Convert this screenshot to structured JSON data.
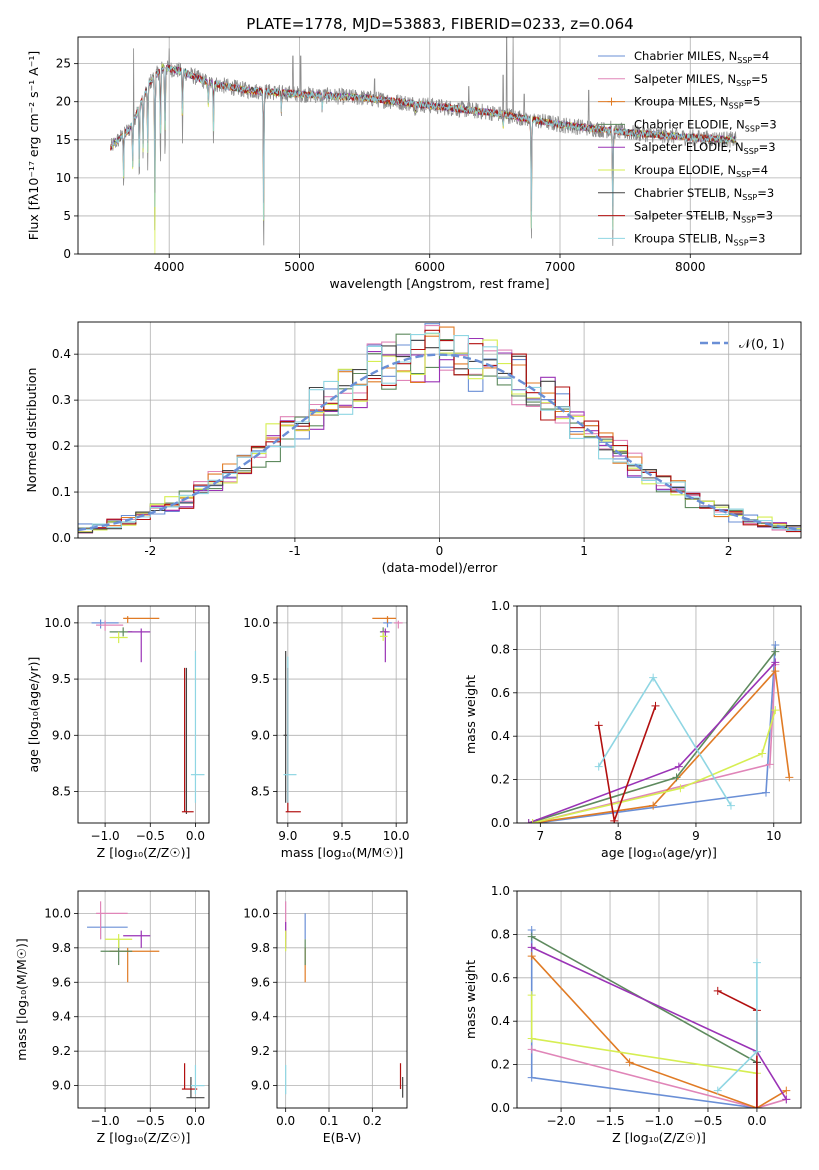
{
  "title": "PLATE=1778, MJD=53883, FIBERID=0233, z=0.064",
  "models": [
    {
      "name": "Chabrier MILES",
      "nssp": "4",
      "color": "#6a8fd6"
    },
    {
      "name": "Salpeter MILES",
      "nssp": "5",
      "color": "#e085b8"
    },
    {
      "name": "Kroupa MILES",
      "nssp": "5",
      "color": "#e07b25"
    },
    {
      "name": "Chabrier ELODIE",
      "nssp": "3",
      "color": "#5e8a5e"
    },
    {
      "name": "Salpeter ELODIE",
      "nssp": "3",
      "color": "#9a33b6"
    },
    {
      "name": "Kroupa ELODIE",
      "nssp": "4",
      "color": "#d6ee52"
    },
    {
      "name": "Chabrier STELIB",
      "nssp": "3",
      "color": "#444444"
    },
    {
      "name": "Salpeter STELIB",
      "nssp": "3",
      "color": "#b21010"
    },
    {
      "name": "Kroupa STELIB",
      "nssp": "3",
      "color": "#8fd6e3"
    }
  ],
  "chart_data": [
    {
      "id": "spectrum",
      "type": "line",
      "xlabel": "wavelength [Angstrom, rest frame]",
      "ylabel": "Flux [fλ10⁻¹⁷ erg cm⁻² s⁻¹ A⁻¹]",
      "xlim": [
        3300,
        8850
      ],
      "ylim": [
        0,
        28.5
      ],
      "xticks": [
        4000,
        5000,
        6000,
        7000,
        8000
      ],
      "yticks": [
        0,
        5,
        10,
        15,
        20,
        25
      ],
      "data_color": "#8c8c8c",
      "continuum": [
        [
          3550,
          14.0
        ],
        [
          3700,
          16.5
        ],
        [
          3850,
          22.5
        ],
        [
          3950,
          24.5
        ],
        [
          4100,
          24.0
        ],
        [
          4300,
          22.5
        ],
        [
          4600,
          21.5
        ],
        [
          5000,
          21.0
        ],
        [
          5500,
          20.5
        ],
        [
          6000,
          19.5
        ],
        [
          6500,
          18.5
        ],
        [
          7000,
          17.0
        ],
        [
          7500,
          16.0
        ],
        [
          8000,
          15.3
        ],
        [
          8350,
          15.0
        ]
      ],
      "absorption": [
        [
          3650,
          9.0
        ],
        [
          3720,
          10.0
        ],
        [
          3770,
          9.5
        ],
        [
          3800,
          12.0
        ],
        [
          3835,
          11.0
        ],
        [
          3890,
          2.0
        ],
        [
          3933,
          11.0
        ],
        [
          3968,
          12.0
        ],
        [
          4102,
          15.0
        ],
        [
          4300,
          19.0
        ],
        [
          4340,
          15.0
        ],
        [
          4725,
          0.0
        ],
        [
          4861,
          18.0
        ],
        [
          5175,
          19.0
        ],
        [
          5890,
          18.5
        ],
        [
          6563,
          16.0
        ],
        [
          6780,
          0.0
        ],
        [
          7405,
          0.0
        ]
      ],
      "emission": [
        [
          3727,
          27.0
        ],
        [
          4000,
          27.0
        ],
        [
          4950,
          26.0
        ],
        [
          5010,
          26.0
        ],
        [
          5577,
          23.0
        ],
        [
          6300,
          22.0
        ],
        [
          6563,
          23.5
        ],
        [
          6590,
          28.5
        ],
        [
          6640,
          28.5
        ],
        [
          6725,
          21.0
        ],
        [
          7220,
          21.5
        ],
        [
          7390,
          17.5
        ]
      ]
    },
    {
      "id": "residuals",
      "type": "histogram",
      "xlabel": "(data-model)/error",
      "ylabel": "Normed distribution",
      "xlim": [
        -2.5,
        2.5
      ],
      "ylim": [
        0,
        0.47
      ],
      "xticks": [
        -2,
        -1,
        0,
        1,
        2
      ],
      "yticks": [
        0.0,
        0.1,
        0.2,
        0.3,
        0.4
      ],
      "bin_width": 0.1,
      "legend": "𝒩(0, 1)",
      "legend_color": "#6a8fd6"
    },
    {
      "id": "age-vs-Z",
      "type": "errorbar",
      "xlabel": "Z [log₁₀(Z/Z☉)]",
      "ylabel": "age  [log₁₀(age/yr)]",
      "xlim": [
        -1.3,
        0.15
      ],
      "ylim": [
        8.22,
        10.15
      ],
      "xticks": [
        -1.0,
        -0.5,
        0.0
      ],
      "yticks": [
        8.5,
        9.0,
        9.5,
        10.0
      ],
      "points": [
        {
          "m": 0,
          "x": -1.05,
          "y": 10.0,
          "xe": [
            -1.15,
            -0.85
          ],
          "ye": [
            9.95,
            10.03
          ]
        },
        {
          "m": 1,
          "x": -1.0,
          "y": 9.98,
          "xe": [
            -1.1,
            -0.8
          ],
          "ye": [
            9.93,
            10.02
          ]
        },
        {
          "m": 2,
          "x": -0.75,
          "y": 10.04,
          "xe": [
            -0.8,
            -0.4
          ],
          "ye": [
            10.0,
            10.06
          ]
        },
        {
          "m": 3,
          "x": -0.8,
          "y": 9.92,
          "xe": [
            -0.95,
            -0.7
          ],
          "ye": [
            9.88,
            9.96
          ]
        },
        {
          "m": 4,
          "x": -0.6,
          "y": 9.92,
          "xe": [
            -0.75,
            -0.5
          ],
          "ye": [
            9.65,
            9.95
          ]
        },
        {
          "m": 5,
          "x": -0.85,
          "y": 9.87,
          "xe": [
            -0.95,
            -0.75
          ],
          "ye": [
            9.82,
            9.92
          ]
        },
        {
          "m": 6,
          "x": -0.1,
          "y": 9.6,
          "xe": [
            -0.1,
            -0.1
          ],
          "ye": [
            8.3,
            9.6
          ]
        },
        {
          "m": 7,
          "x": -0.12,
          "y": 8.32,
          "xe": [
            -0.15,
            -0.02
          ],
          "ye": [
            8.32,
            9.6
          ]
        },
        {
          "m": 8,
          "x": 0.0,
          "y": 8.65,
          "xe": [
            -0.05,
            0.1
          ],
          "ye": [
            8.4,
            9.75
          ]
        }
      ]
    },
    {
      "id": "age-vs-mass",
      "type": "errorbar",
      "xlabel": "mass [log₁₀(M/M☉)]",
      "ylabel": "",
      "xlim": [
        8.9,
        10.1
      ],
      "ylim": [
        8.22,
        10.15
      ],
      "xticks": [
        9.0,
        9.5,
        10.0
      ],
      "yticks": [
        8.5,
        9.0,
        9.5,
        10.0
      ],
      "points": [
        {
          "m": 0,
          "x": 9.92,
          "y": 10.0,
          "xe": [
            9.88,
            9.96
          ],
          "ye": [
            9.96,
            10.03
          ]
        },
        {
          "m": 1,
          "x": 10.02,
          "y": 10.0,
          "xe": [
            9.98,
            10.06
          ],
          "ye": [
            9.95,
            10.02
          ]
        },
        {
          "m": 2,
          "x": 9.92,
          "y": 10.04,
          "xe": [
            9.78,
            10.0
          ],
          "ye": [
            10.0,
            10.06
          ]
        },
        {
          "m": 3,
          "x": 9.88,
          "y": 9.92,
          "xe": [
            9.85,
            9.92
          ],
          "ye": [
            9.88,
            9.96
          ]
        },
        {
          "m": 4,
          "x": 9.9,
          "y": 9.92,
          "xe": [
            9.86,
            9.94
          ],
          "ye": [
            9.65,
            9.95
          ]
        },
        {
          "m": 5,
          "x": 9.88,
          "y": 9.88,
          "xe": [
            9.85,
            9.92
          ],
          "ye": [
            9.84,
            9.92
          ]
        },
        {
          "m": 6,
          "x": 8.98,
          "y": 9.0,
          "xe": [
            8.96,
            9.0
          ],
          "ye": [
            8.4,
            9.75
          ]
        },
        {
          "m": 7,
          "x": 9.0,
          "y": 8.32,
          "xe": [
            8.98,
            9.12
          ],
          "ye": [
            8.32,
            9.6
          ]
        },
        {
          "m": 8,
          "x": 9.0,
          "y": 8.65,
          "xe": [
            8.96,
            9.08
          ],
          "ye": [
            8.4,
            9.7
          ]
        }
      ]
    },
    {
      "id": "massweight-vs-age",
      "type": "line",
      "xlabel": "age  [log₁₀(age/yr)]",
      "ylabel": "mass weight",
      "xlim": [
        6.7,
        10.35
      ],
      "ylim": [
        0,
        1.0
      ],
      "xticks": [
        7,
        8,
        9,
        10
      ],
      "yticks": [
        0.0,
        0.2,
        0.4,
        0.6,
        0.8,
        1.0
      ],
      "series": [
        {
          "m": 0,
          "x": [
            6.95,
            9.9,
            10.02
          ],
          "y": [
            0.0,
            0.14,
            0.82
          ]
        },
        {
          "m": 1,
          "x": [
            6.9,
            9.95,
            10.02
          ],
          "y": [
            0.0,
            0.27,
            0.73
          ]
        },
        {
          "m": 2,
          "x": [
            6.9,
            8.45,
            10.02,
            10.2
          ],
          "y": [
            0.0,
            0.08,
            0.7,
            0.21
          ]
        },
        {
          "m": 3,
          "x": [
            6.85,
            8.75,
            10.02
          ],
          "y": [
            0.0,
            0.21,
            0.79
          ]
        },
        {
          "m": 4,
          "x": [
            6.85,
            8.78,
            10.02
          ],
          "y": [
            0.0,
            0.26,
            0.74
          ]
        },
        {
          "m": 5,
          "x": [
            6.9,
            8.8,
            9.85,
            10.02
          ],
          "y": [
            0.0,
            0.16,
            0.32,
            0.52
          ]
        },
        {
          "m": 6,
          "x": [
            7.95,
            7.95
          ],
          "y": [
            0.0,
            0.0
          ]
        },
        {
          "m": 7,
          "x": [
            7.75,
            7.95,
            8.48
          ],
          "y": [
            0.45,
            0.01,
            0.54
          ]
        },
        {
          "m": 8,
          "x": [
            7.75,
            8.45,
            9.45
          ],
          "y": [
            0.26,
            0.67,
            0.08
          ]
        }
      ]
    },
    {
      "id": "mass-vs-Z",
      "type": "errorbar",
      "xlabel": "Z [log₁₀(Z/Z☉)]",
      "ylabel": "mass [log₁₀(M/M☉)]",
      "xlim": [
        -1.3,
        0.15
      ],
      "ylim": [
        8.87,
        10.13
      ],
      "xticks": [
        -1.0,
        -0.5,
        0.0
      ],
      "yticks": [
        9.0,
        9.2,
        9.4,
        9.6,
        9.8,
        10.0
      ],
      "points": [
        {
          "m": 0,
          "x": -1.05,
          "y": 9.92,
          "xe": [
            -1.2,
            -0.75
          ],
          "ye": [
            9.85,
            10.0
          ]
        },
        {
          "m": 1,
          "x": -1.05,
          "y": 10.0,
          "xe": [
            -1.1,
            -0.75
          ],
          "ye": [
            9.85,
            10.07
          ]
        },
        {
          "m": 2,
          "x": -0.75,
          "y": 9.78,
          "xe": [
            -0.95,
            -0.4
          ],
          "ye": [
            9.6,
            9.8
          ]
        },
        {
          "m": 3,
          "x": -0.85,
          "y": 9.78,
          "xe": [
            -1.05,
            -0.7
          ],
          "ye": [
            9.7,
            9.85
          ]
        },
        {
          "m": 4,
          "x": -0.6,
          "y": 9.87,
          "xe": [
            -0.8,
            -0.5
          ],
          "ye": [
            9.8,
            9.9
          ]
        },
        {
          "m": 5,
          "x": -0.85,
          "y": 9.85,
          "xe": [
            -1.0,
            -0.7
          ],
          "ye": [
            9.8,
            9.88
          ]
        },
        {
          "m": 6,
          "x": -0.05,
          "y": 8.93,
          "xe": [
            -0.1,
            0.1
          ],
          "ye": [
            8.93,
            9.05
          ]
        },
        {
          "m": 7,
          "x": -0.12,
          "y": 8.98,
          "xe": [
            -0.15,
            0.02
          ],
          "ye": [
            8.98,
            9.13
          ]
        },
        {
          "m": 8,
          "x": 0.0,
          "y": 9.0,
          "xe": [
            -0.05,
            0.1
          ],
          "ye": [
            8.95,
            9.12
          ]
        }
      ]
    },
    {
      "id": "mass-vs-EBV",
      "type": "errorbar",
      "xlabel": "E(B-V)",
      "ylabel": "",
      "xlim": [
        -0.02,
        0.28
      ],
      "ylim": [
        8.87,
        10.13
      ],
      "xticks": [
        0.0,
        0.1,
        0.2
      ],
      "yticks": [
        9.0,
        9.2,
        9.4,
        9.6,
        9.8,
        10.0
      ],
      "points": [
        {
          "m": 0,
          "x": 0.045,
          "y": 9.92,
          "xe": [
            0.045,
            0.045
          ],
          "ye": [
            9.85,
            10.0
          ]
        },
        {
          "m": 1,
          "x": 0.0,
          "y": 10.0,
          "xe": [
            0.0,
            0.0
          ],
          "ye": [
            9.85,
            10.07
          ]
        },
        {
          "m": 2,
          "x": 0.045,
          "y": 9.78,
          "xe": [
            0.045,
            0.045
          ],
          "ye": [
            9.6,
            9.8
          ]
        },
        {
          "m": 3,
          "x": 0.045,
          "y": 9.8,
          "xe": [
            0.045,
            0.045
          ],
          "ye": [
            9.7,
            9.85
          ]
        },
        {
          "m": 4,
          "x": 0.0,
          "y": 9.87,
          "xe": [
            0.0,
            0.0
          ],
          "ye": [
            9.8,
            9.95
          ]
        },
        {
          "m": 5,
          "x": 0.0,
          "y": 9.85,
          "xe": [
            0.0,
            0.0
          ],
          "ye": [
            9.78,
            9.9
          ]
        },
        {
          "m": 6,
          "x": 0.27,
          "y": 8.93,
          "xe": [
            0.27,
            0.27
          ],
          "ye": [
            8.93,
            9.05
          ]
        },
        {
          "m": 7,
          "x": 0.265,
          "y": 8.98,
          "xe": [
            0.265,
            0.265
          ],
          "ye": [
            8.98,
            9.13
          ]
        },
        {
          "m": 8,
          "x": 0.0,
          "y": 9.0,
          "xe": [
            0.0,
            0.0
          ],
          "ye": [
            8.95,
            9.12
          ]
        }
      ]
    },
    {
      "id": "massweight-vs-Z",
      "type": "line",
      "xlabel": "Z [log₁₀(Z/Z☉)]",
      "ylabel": "mass weight",
      "xlim": [
        -2.45,
        0.45
      ],
      "ylim": [
        0,
        1.0
      ],
      "xticks": [
        -2.0,
        -1.5,
        -1.0,
        -0.5,
        0.0
      ],
      "yticks": [
        0.0,
        0.2,
        0.4,
        0.6,
        0.8,
        1.0
      ],
      "series": [
        {
          "m": 0,
          "x": [
            -2.3,
            -2.3,
            0.0
          ],
          "y": [
            0.82,
            0.14,
            0.0
          ]
        },
        {
          "m": 1,
          "x": [
            -2.3,
            0.0,
            0.3
          ],
          "y": [
            0.27,
            0.0,
            0.04
          ]
        },
        {
          "m": 2,
          "x": [
            -2.3,
            -1.3,
            0.0,
            0.3
          ],
          "y": [
            0.7,
            0.21,
            0.0,
            0.08
          ]
        },
        {
          "m": 3,
          "x": [
            -2.3,
            0.0
          ],
          "y": [
            0.79,
            0.21
          ]
        },
        {
          "m": 4,
          "x": [
            -2.3,
            0.0,
            0.3
          ],
          "y": [
            0.74,
            0.26,
            0.04
          ]
        },
        {
          "m": 5,
          "x": [
            -2.3,
            -2.3,
            0.0
          ],
          "y": [
            0.52,
            0.32,
            0.16
          ]
        },
        {
          "m": 6,
          "x": [
            0.0,
            0.0
          ],
          "y": [
            0.21,
            0.0
          ]
        },
        {
          "m": 7,
          "x": [
            -0.4,
            0.0,
            0.0
          ],
          "y": [
            0.54,
            0.45,
            0.0
          ]
        },
        {
          "m": 8,
          "x": [
            -0.4,
            0.0,
            0.0
          ],
          "y": [
            0.08,
            0.26,
            0.67
          ]
        }
      ]
    }
  ]
}
